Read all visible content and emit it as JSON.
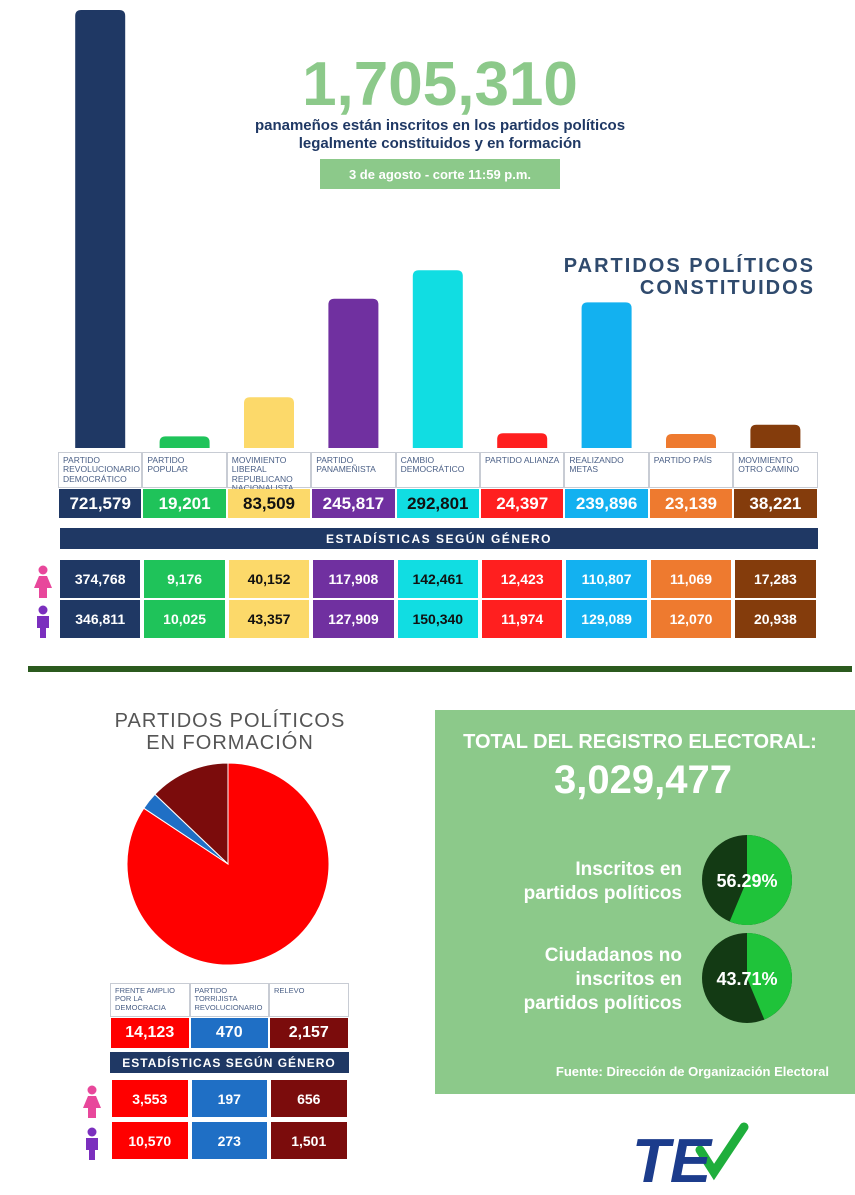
{
  "header": {
    "headline": "1,705,310",
    "subtitle_lines": [
      "panameños están inscritos en los partidos políticos",
      "legalmente constituidos y en formación"
    ],
    "date": "3 de agosto - corte 11:59 p.m."
  },
  "chart_data": [
    {
      "type": "bar",
      "title_lines": [
        "PARTIDOS POLÍTICOS",
        "CONSTITUIDOS"
      ],
      "categories": [
        "PARTIDO REVOLUCIONARIO DEMOCRÁTICO",
        "PARTIDO POPULAR",
        "MOVIMIENTO LIBERAL REPUBLICANO NACIONALISTA",
        "PARTIDO PANAMEÑISTA",
        "CAMBIO DEMOCRÁTICO",
        "PARTIDO ALIANZA",
        "REALIZANDO METAS",
        "PARTIDO PAÍS",
        "MOVIMIENTO OTRO CAMINO"
      ],
      "values": [
        721579,
        19201,
        83509,
        245817,
        292801,
        24397,
        239896,
        23139,
        38221
      ],
      "value_labels": [
        "721,579",
        "19,201",
        "83,509",
        "245,817",
        "292,801",
        "24,397",
        "239,896",
        "23,139",
        "38,221"
      ],
      "colors": [
        "#1f3864",
        "#1fc35a",
        "#fcd96a",
        "#7030a0",
        "#11dde2",
        "#ff1f1f",
        "#13b1f0",
        "#ee7a2f",
        "#843c0c"
      ],
      "value_label_colors": [
        "#ffffff",
        "#ffffff",
        "#111111",
        "#ffffff",
        "#111111",
        "#ffffff",
        "#ffffff",
        "#ffffff",
        "#ffffff"
      ],
      "gender_table": {
        "title": "ESTADÍSTICAS SEGÚN GÉNERO",
        "rows": [
          [
            "374,768",
            "9,176",
            "40,152",
            "117,908",
            "142,461",
            "12,423",
            "110,807",
            "11,069",
            "17,283"
          ],
          [
            "346,811",
            "10,025",
            "43,357",
            "127,909",
            "150,340",
            "11,974",
            "129,089",
            "12,070",
            "20,938"
          ]
        ]
      }
    },
    {
      "type": "pie",
      "title_lines": [
        "PARTIDOS POLÍTICOS",
        "EN FORMACIÓN"
      ],
      "categories": [
        "FRENTE AMPLIO POR LA DEMOCRACIA",
        "PARTIDO TORRIJISTA REVOLUCIONARIO",
        "RELEVO"
      ],
      "values": [
        14123,
        470,
        2157
      ],
      "value_labels": [
        "14,123",
        "470",
        "2,157"
      ],
      "colors": [
        "#ff0000",
        "#1f6fc5",
        "#7b0c0c"
      ],
      "gender_table": {
        "title": "ESTADÍSTICAS SEGÚN GÉNERO",
        "rows": [
          [
            "3,553",
            "197",
            "656"
          ],
          [
            "10,570",
            "273",
            "1,501"
          ]
        ]
      }
    }
  ],
  "registry": {
    "title": "TOTAL DEL REGISTRO ELECTORAL:",
    "total": "3,029,477",
    "items": [
      {
        "label_lines": [
          "Inscritos en",
          "partidos políticos"
        ],
        "value": 56.29,
        "value_label": "56.29%"
      },
      {
        "label_lines": [
          "Ciudadanos no",
          "inscritos en",
          "partidos políticos"
        ],
        "value": 43.71,
        "value_label": "43.71%"
      }
    ],
    "source": "Fuente: Dirección de Organización Electoral"
  },
  "logo": "TE"
}
